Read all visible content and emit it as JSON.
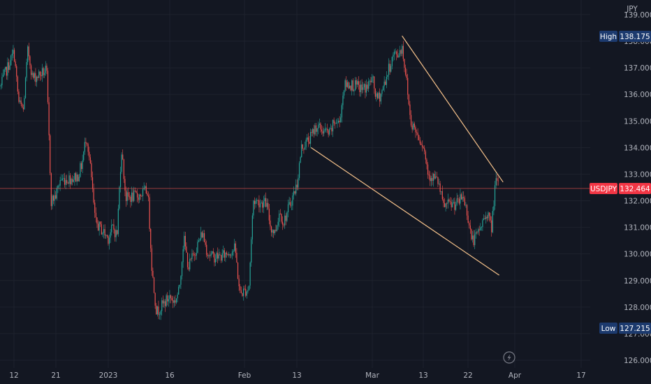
{
  "header": {
    "currency_label": "JPY"
  },
  "chart_data": {
    "type": "line",
    "symbol": "USDJPY",
    "y_ticks": [
      "126.000",
      "127.000",
      "128.000",
      "129.000",
      "130.000",
      "131.000",
      "132.000",
      "133.000",
      "134.000",
      "135.000",
      "136.000",
      "137.000",
      "138.000",
      "139.000"
    ],
    "ylim": [
      125.8,
      139.5
    ],
    "x_ticks": [
      {
        "label": "12",
        "date": "2022-12-12"
      },
      {
        "label": "21",
        "date": "2022-12-21"
      },
      {
        "label": "2023",
        "date": "2023-01-02"
      },
      {
        "label": "16",
        "date": "2023-01-16"
      },
      {
        "label": "Feb",
        "date": "2023-02-01"
      },
      {
        "label": "13",
        "date": "2023-02-13"
      },
      {
        "label": "Mar",
        "date": "2023-03-01"
      },
      {
        "label": "13",
        "date": "2023-03-13"
      },
      {
        "label": "22",
        "date": "2023-03-22"
      },
      {
        "label": "Apr",
        "date": "2023-04-03"
      },
      {
        "label": "17",
        "date": "2023-04-17"
      }
    ],
    "series": [
      {
        "points": [
          [
            "2022-12-08",
            136.3
          ],
          [
            "2022-12-09",
            136.7
          ],
          [
            "2022-12-12",
            137.6
          ],
          [
            "2022-12-13",
            135.7
          ],
          [
            "2022-12-14",
            135.4
          ],
          [
            "2022-12-15",
            137.7
          ],
          [
            "2022-12-16",
            136.6
          ],
          [
            "2022-12-19",
            136.9
          ],
          [
            "2022-12-20",
            132.0
          ],
          [
            "2022-12-21",
            132.2
          ],
          [
            "2022-12-22",
            132.8
          ],
          [
            "2022-12-23",
            132.8
          ],
          [
            "2022-12-26",
            132.9
          ],
          [
            "2022-12-27",
            133.4
          ],
          [
            "2022-12-28",
            134.5
          ],
          [
            "2022-12-29",
            133.1
          ],
          [
            "2022-12-30",
            131.2
          ],
          [
            "2023-01-02",
            130.6
          ],
          [
            "2023-01-03",
            131.0
          ],
          [
            "2023-01-04",
            130.7
          ],
          [
            "2023-01-05",
            134.0
          ],
          [
            "2023-01-06",
            132.1
          ],
          [
            "2023-01-09",
            132.2
          ],
          [
            "2023-01-10",
            132.3
          ],
          [
            "2023-01-11",
            132.4
          ],
          [
            "2023-01-12",
            129.3
          ],
          [
            "2023-01-13",
            127.8
          ],
          [
            "2023-01-16",
            128.4
          ],
          [
            "2023-01-17",
            128.2
          ],
          [
            "2023-01-18",
            128.6
          ],
          [
            "2023-01-19",
            130.6
          ],
          [
            "2023-01-20",
            129.5
          ],
          [
            "2023-01-23",
            130.8
          ],
          [
            "2023-01-24",
            130.1
          ],
          [
            "2023-01-25",
            129.9
          ],
          [
            "2023-01-26",
            129.9
          ],
          [
            "2023-01-27",
            129.9
          ],
          [
            "2023-01-30",
            130.2
          ],
          [
            "2023-01-31",
            128.5
          ],
          [
            "2023-02-01",
            128.6
          ],
          [
            "2023-02-02",
            128.7
          ],
          [
            "2023-02-03",
            132.0
          ],
          [
            "2023-02-06",
            131.9
          ],
          [
            "2023-02-07",
            131.0
          ],
          [
            "2023-02-08",
            130.8
          ],
          [
            "2023-02-09",
            131.6
          ],
          [
            "2023-02-10",
            131.2
          ],
          [
            "2023-02-13",
            132.6
          ],
          [
            "2023-02-14",
            134.0
          ],
          [
            "2023-02-15",
            134.2
          ],
          [
            "2023-02-16",
            134.4
          ],
          [
            "2023-02-17",
            134.8
          ],
          [
            "2023-02-20",
            134.5
          ],
          [
            "2023-02-21",
            135.0
          ],
          [
            "2023-02-22",
            134.9
          ],
          [
            "2023-02-23",
            136.3
          ],
          [
            "2023-02-24",
            136.4
          ],
          [
            "2023-02-27",
            136.2
          ],
          [
            "2023-02-28",
            136.3
          ],
          [
            "2023-03-01",
            136.6
          ],
          [
            "2023-03-02",
            135.8
          ],
          [
            "2023-03-03",
            136.0
          ],
          [
            "2023-03-06",
            137.5
          ],
          [
            "2023-03-07",
            137.5
          ],
          [
            "2023-03-08",
            137.8
          ],
          [
            "2023-03-09",
            136.6
          ],
          [
            "2023-03-10",
            135.0
          ],
          [
            "2023-03-13",
            134.1
          ],
          [
            "2023-03-14",
            133.0
          ],
          [
            "2023-03-15",
            132.9
          ],
          [
            "2023-03-16",
            132.7
          ],
          [
            "2023-03-17",
            131.8
          ],
          [
            "2023-03-20",
            131.9
          ],
          [
            "2023-03-21",
            132.2
          ],
          [
            "2023-03-22",
            131.4
          ],
          [
            "2023-03-23",
            130.5
          ],
          [
            "2023-03-24",
            130.6
          ],
          [
            "2023-03-27",
            131.6
          ],
          [
            "2023-03-28",
            130.9
          ],
          [
            "2023-03-29",
            132.7
          ],
          [
            "2023-03-30",
            132.5
          ]
        ]
      }
    ],
    "trend_lines": [
      {
        "from": [
          "2023-03-08",
          138.2
        ],
        "to": [
          "2023-03-31",
          132.7
        ]
      },
      {
        "from": [
          "2023-02-16",
          134.0
        ],
        "to": [
          "2023-03-30",
          129.2
        ]
      }
    ],
    "markers": {
      "high": {
        "label": "High",
        "value": "138.175"
      },
      "current": {
        "label": "USDJPY",
        "value": "132.464"
      },
      "low": {
        "label": "Low",
        "value": "127.215"
      }
    },
    "colors": {
      "up": "#26a69a",
      "down": "#ef5350",
      "background": "#131722",
      "grid": "#1e222d",
      "trend": "#f6c28b",
      "current_line": "#ef5350",
      "badge_bg": "#1c3a6e",
      "badge_current": "#f23645"
    }
  }
}
